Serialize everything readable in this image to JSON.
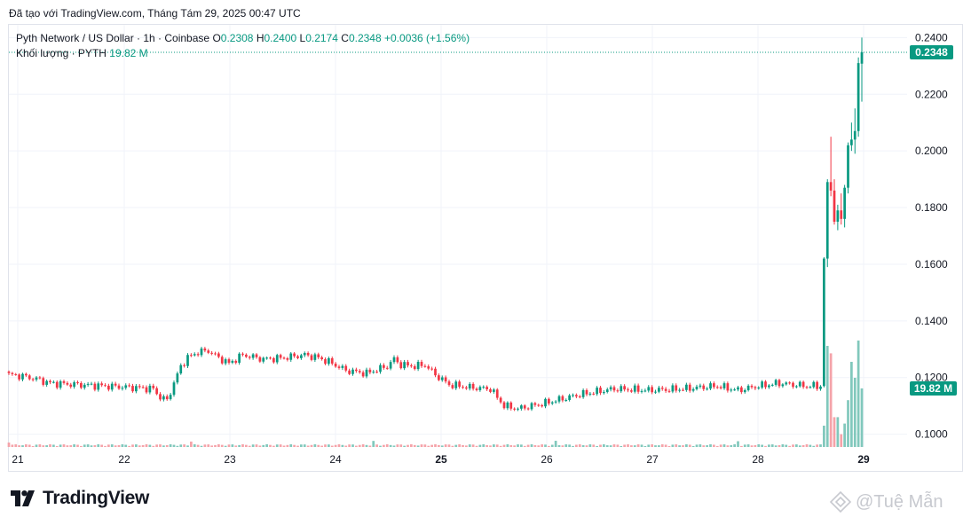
{
  "header": {
    "caption": "Đã tạo với TradingView.com, Tháng Tám 29, 2025 00:47 UTC"
  },
  "legend": {
    "symbol": "Pyth Network / US Dollar · 1h · Coinbase",
    "o_label": "O",
    "o_value": "0.2308",
    "h_label": "H",
    "h_value": "0.2400",
    "l_label": "L",
    "l_value": "0.2174",
    "c_label": "C",
    "c_value": "0.2348",
    "change": "+0.0036 (+1.56%)",
    "volume_label": "Khối lượng · PYTH",
    "volume_value": "19.82 M"
  },
  "branding": {
    "logo_text": "TradingView",
    "watermark": "@Tuệ Mẫn"
  },
  "colors": {
    "up": "#089981",
    "down": "#f23645",
    "vol_up": "#81c8bc",
    "vol_down": "#f5a3a9",
    "grid": "#f0f3fa",
    "text": "#131722"
  },
  "chart_data": {
    "type": "candlestick",
    "symbol": "PYTH/USD",
    "interval": "1h",
    "exchange": "Coinbase",
    "x_ticks": [
      "21",
      "22",
      "23",
      "24",
      "25",
      "26",
      "27",
      "28",
      "29"
    ],
    "y_ticks": [
      "0.1000",
      "0.1200",
      "0.1400",
      "0.1600",
      "0.1800",
      "0.2000",
      "0.2200",
      "0.2400"
    ],
    "ylim": [
      0.0955,
      0.2445
    ],
    "last_price": "0.2348",
    "last_volume": "19.82 M",
    "grid": true,
    "anchors": [
      [
        0,
        0.121
      ],
      [
        4,
        0.1205
      ],
      [
        8,
        0.1195
      ],
      [
        12,
        0.118
      ],
      [
        20,
        0.1175
      ],
      [
        28,
        0.117
      ],
      [
        36,
        0.1165
      ],
      [
        42,
        0.116
      ],
      [
        44,
        0.113
      ],
      [
        46,
        0.112
      ],
      [
        48,
        0.118
      ],
      [
        50,
        0.124
      ],
      [
        52,
        0.127
      ],
      [
        55,
        0.129
      ],
      [
        58,
        0.1295
      ],
      [
        61,
        0.127
      ],
      [
        64,
        0.125
      ],
      [
        68,
        0.128
      ],
      [
        74,
        0.1265
      ],
      [
        80,
        0.127
      ],
      [
        86,
        0.128
      ],
      [
        90,
        0.127
      ],
      [
        94,
        0.125
      ],
      [
        98,
        0.1225
      ],
      [
        104,
        0.1215
      ],
      [
        110,
        0.124
      ],
      [
        112,
        0.1265
      ],
      [
        114,
        0.1245
      ],
      [
        118,
        0.124
      ],
      [
        121,
        0.1245
      ],
      [
        124,
        0.121
      ],
      [
        128,
        0.1175
      ],
      [
        134,
        0.1165
      ],
      [
        140,
        0.116
      ],
      [
        144,
        0.11
      ],
      [
        148,
        0.109
      ],
      [
        156,
        0.111
      ],
      [
        166,
        0.114
      ],
      [
        176,
        0.116
      ],
      [
        186,
        0.1155
      ],
      [
        196,
        0.116
      ],
      [
        206,
        0.117
      ],
      [
        212,
        0.1155
      ],
      [
        218,
        0.117
      ],
      [
        224,
        0.118
      ],
      [
        232,
        0.117
      ],
      [
        236,
        0.117
      ]
    ],
    "final_candles": [
      {
        "o": 0.117,
        "h": 0.1625,
        "l": 0.1165,
        "c": 0.162
      },
      {
        "o": 0.162,
        "h": 0.19,
        "l": 0.159,
        "c": 0.189
      },
      {
        "o": 0.189,
        "h": 0.205,
        "l": 0.184,
        "c": 0.186
      },
      {
        "o": 0.186,
        "h": 0.19,
        "l": 0.174,
        "c": 0.175
      },
      {
        "o": 0.175,
        "h": 0.181,
        "l": 0.172,
        "c": 0.179
      },
      {
        "o": 0.179,
        "h": 0.185,
        "l": 0.174,
        "c": 0.176
      },
      {
        "o": 0.176,
        "h": 0.188,
        "l": 0.173,
        "c": 0.187
      },
      {
        "o": 0.187,
        "h": 0.203,
        "l": 0.185,
        "c": 0.202
      },
      {
        "o": 0.202,
        "h": 0.21,
        "l": 0.2,
        "c": 0.204
      },
      {
        "o": 0.204,
        "h": 0.215,
        "l": 0.199,
        "c": 0.207
      },
      {
        "o": 0.207,
        "h": 0.233,
        "l": 0.205,
        "c": 0.231
      },
      {
        "o": 0.2308,
        "h": 0.24,
        "l": 0.2174,
        "c": 0.2348
      }
    ],
    "final_volumes": [
      0.2,
      0.95,
      0.88,
      0.28,
      0.28,
      0.12,
      0.22,
      0.44,
      0.8,
      0.65,
      1.0,
      0.55
    ]
  }
}
